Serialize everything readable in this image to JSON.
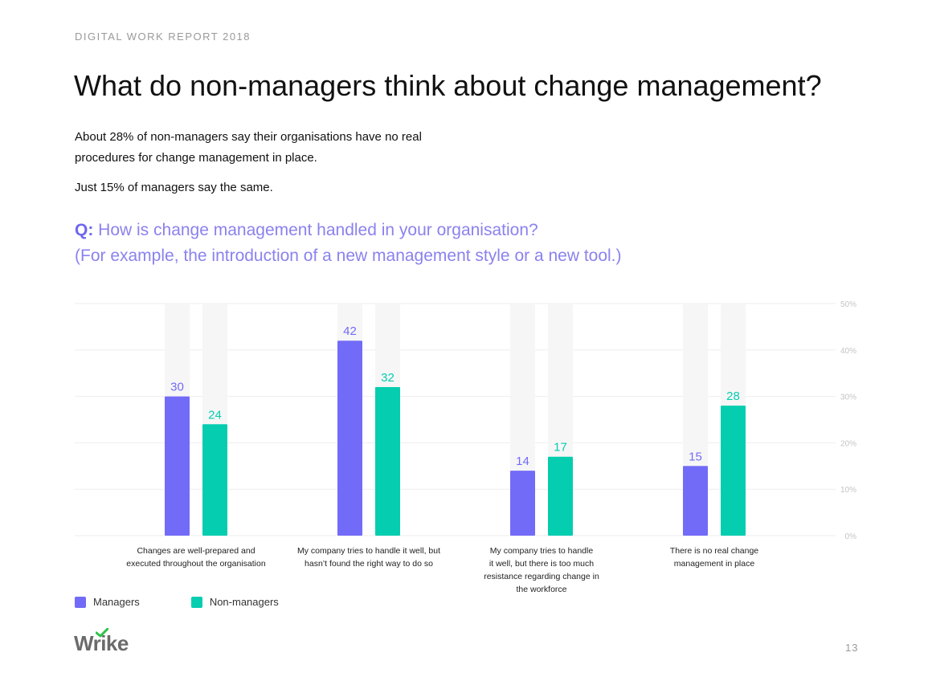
{
  "report_tag": "DIGITAL WORK REPORT 2018",
  "title": "What do non-managers think about change management?",
  "intro_text": "About 28% of non-managers say their organisations have no real procedures for change management in place.",
  "intro_text_2": "Just 15% of managers say the same.",
  "question_prefix": "Q:",
  "question_text": "How is change management handled in your organisation?",
  "question_subtext": "(For example, the introduction of a new management style or a new tool.)",
  "colors": {
    "managers": "#726bf7",
    "non_managers": "#05cdb0",
    "track": "#f6f6f6",
    "grid": "#eeeeee"
  },
  "chart_data": {
    "type": "bar",
    "categories": [
      "Changes are well-prepared and executed throughout the organisation",
      "My company tries to handle it well, but hasn't found the right way to do so",
      "My company tries to handle it well, but there is too much resistance regarding change in the workforce",
      "There is no real change management in place"
    ],
    "category_lines": [
      [
        "Changes are well-prepared and",
        "executed throughout the organisation"
      ],
      [
        "My company tries to handle it well, but",
        "hasn’t found the right way to do so"
      ],
      [
        "My company tries to handle",
        "it well, but there is too much",
        "resistance regarding change in",
        "the workforce"
      ],
      [
        "There is no real change",
        "management in place"
      ]
    ],
    "series": [
      {
        "name": "Managers",
        "values": [
          30,
          42,
          14,
          15
        ]
      },
      {
        "name": "Non-managers",
        "values": [
          24,
          32,
          17,
          28
        ]
      }
    ],
    "y_ticks": [
      "0%",
      "10%",
      "20%",
      "30%",
      "40%",
      "50%"
    ],
    "ylim": [
      0,
      50
    ],
    "grid": true,
    "legend_position": "bottom-left"
  },
  "logo_text": "Wrike",
  "page_number": "13"
}
